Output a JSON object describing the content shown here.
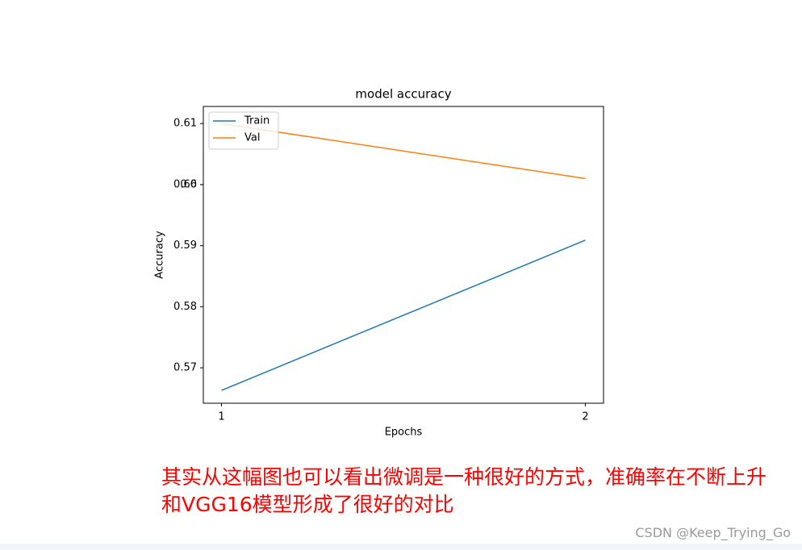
{
  "chart_data": {
    "type": "line",
    "title": "model accuracy",
    "xlabel": "Epochs",
    "ylabel": "Accuracy",
    "x": [
      1,
      2
    ],
    "series": [
      {
        "name": "Train",
        "color": "#1f77b4",
        "values": [
          0.5663,
          0.5909
        ]
      },
      {
        "name": "Val",
        "color": "#ff7f0e",
        "values": [
          0.61,
          0.601
        ]
      }
    ],
    "xlim": [
      0.95,
      2.05
    ],
    "xticks": [
      1,
      2
    ],
    "ylim": [
      0.5642,
      0.6128
    ],
    "yticks": [
      0.57,
      0.58,
      0.59,
      0.6,
      {
        "value": 0.6,
        "label": "0.60"
      },
      0.61
    ],
    "legend": "upper-left"
  },
  "annotation": [
    "其实从这幅图也可以看出微调是一种很好的方式，准确率在不断上升",
    "和VGG16模型形成了很好的对比"
  ],
  "watermark": "CSDN @Keep_Trying_Go"
}
